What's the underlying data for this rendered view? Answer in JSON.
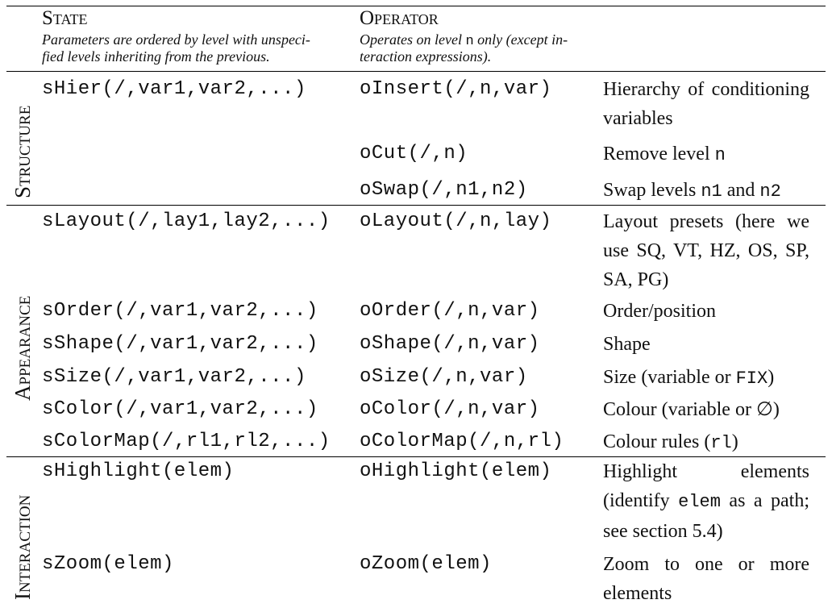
{
  "header": {
    "state": {
      "title": "State",
      "note_line1": "Parameters are ordered by level with unspeci-",
      "note_line2": "fied levels inheriting from the previous."
    },
    "operator": {
      "title": "Operator",
      "note_line1_a": "Operates on level ",
      "note_line1_code": "n",
      "note_line1_b": " only (except in-",
      "note_line2": "teraction expressions)."
    }
  },
  "sections": {
    "structure": "Structure",
    "appearance": "Appearance",
    "interaction": "Interaction"
  },
  "rows": {
    "hier": {
      "state": "sHier(/,var1,var2,...)",
      "operator": "oInsert(/,n,var)",
      "desc": "Hierarchy of conditioning variables"
    },
    "cut": {
      "operator": "oCut(/,n)",
      "desc_a": "Remove level ",
      "desc_code": "n"
    },
    "swap": {
      "operator": "oSwap(/,n1,n2)",
      "desc_a": "Swap levels ",
      "desc_code1": "n1",
      "desc_b": " and ",
      "desc_code2": "n2"
    },
    "layout": {
      "state": "sLayout(/,lay1,lay2,...)",
      "operator": "oLayout(/,n,lay)",
      "desc": "Layout presets (here we use SQ, VT, HZ, OS, SP, SA, PG)"
    },
    "order": {
      "state": "sOrder(/,var1,var2,...)",
      "operator": "oOrder(/,n,var)",
      "desc": "Order/position"
    },
    "shape": {
      "state": "sShape(/,var1,var2,...)",
      "operator": "oShape(/,n,var)",
      "desc": "Shape"
    },
    "size": {
      "state": "sSize(/,var1,var2,...)",
      "operator": "oSize(/,n,var)",
      "desc_a": "Size (variable or ",
      "desc_code": "FIX",
      "desc_b": ")"
    },
    "color": {
      "state": "sColor(/,var1,var2,...)",
      "operator": "oColor(/,n,var)",
      "desc": "Colour (variable or ∅)"
    },
    "colormap": {
      "state": "sColorMap(/,rl1,rl2,...)",
      "operator": "oColorMap(/,n,rl)",
      "desc_a": "Colour rules (",
      "desc_code": "rl",
      "desc_b": ")"
    },
    "highlight": {
      "state": "sHighlight(elem)",
      "operator": "oHighlight(elem)",
      "desc_a": "Highlight elements (identify ",
      "desc_code": "elem",
      "desc_b": " as a path; see section 5.4)"
    },
    "zoom": {
      "state": "sZoom(elem)",
      "operator": "oZoom(elem)",
      "desc": "Zoom to one or more elements"
    }
  }
}
